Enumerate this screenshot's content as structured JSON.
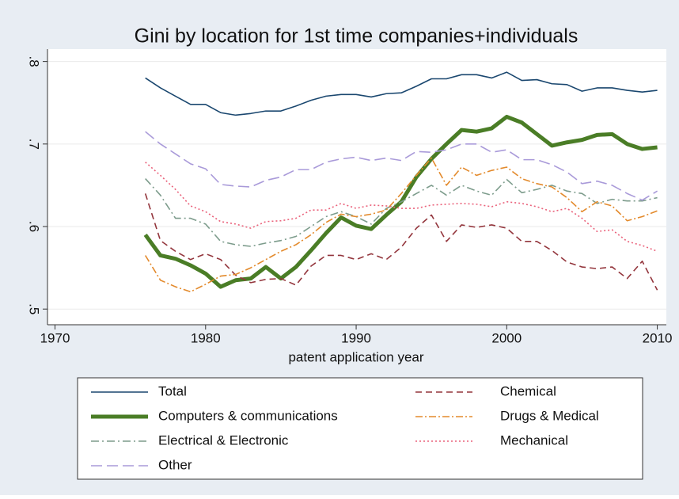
{
  "chart_data": {
    "type": "line",
    "title": "Gini by location for 1st time companies+individuals",
    "xlabel": "patent application year",
    "x": [
      1976,
      1977,
      1978,
      1979,
      1980,
      1981,
      1982,
      1983,
      1984,
      1985,
      1986,
      1987,
      1988,
      1989,
      1990,
      1991,
      1992,
      1993,
      1994,
      1995,
      1996,
      1997,
      1998,
      1999,
      2000,
      2001,
      2002,
      2003,
      2004,
      2005,
      2006,
      2007,
      2008,
      2009,
      2010
    ],
    "xlim": [
      1969.5,
      2010.6
    ],
    "xticks": [
      1970,
      1980,
      1990,
      2000,
      2010
    ],
    "ylim": [
      0.481,
      0.815
    ],
    "yticks": [
      {
        "value": 0.5,
        "label": ".5"
      },
      {
        "value": 0.6,
        "label": ".6"
      },
      {
        "value": 0.7,
        "label": ".7"
      },
      {
        "value": 0.8,
        "label": ".8"
      }
    ],
    "grid": true,
    "series": [
      {
        "name": "Total",
        "color": "#1a476f",
        "values": [
          0.78,
          0.768,
          0.758,
          0.748,
          0.748,
          0.738,
          0.735,
          0.737,
          0.74,
          0.74,
          0.746,
          0.753,
          0.758,
          0.76,
          0.76,
          0.757,
          0.761,
          0.762,
          0.77,
          0.779,
          0.779,
          0.784,
          0.784,
          0.78,
          0.787,
          0.777,
          0.778,
          0.773,
          0.772,
          0.764,
          0.768,
          0.768,
          0.765,
          0.763,
          0.765
        ]
      },
      {
        "name": "Computers & communications",
        "color": "#4a7d26",
        "values": [
          0.59,
          0.565,
          0.561,
          0.553,
          0.543,
          0.527,
          0.535,
          0.537,
          0.551,
          0.537,
          0.551,
          0.571,
          0.592,
          0.611,
          0.601,
          0.597,
          0.614,
          0.63,
          0.66,
          0.682,
          0.7,
          0.717,
          0.715,
          0.719,
          0.733,
          0.726,
          0.712,
          0.698,
          0.702,
          0.705,
          0.711,
          0.712,
          0.7,
          0.694,
          0.696
        ]
      },
      {
        "name": "Electrical & Electronic",
        "color": "#7d9c8c",
        "values": [
          0.658,
          0.638,
          0.61,
          0.61,
          0.603,
          0.582,
          0.578,
          0.576,
          0.58,
          0.583,
          0.588,
          0.6,
          0.612,
          0.618,
          0.612,
          0.603,
          0.622,
          0.63,
          0.64,
          0.65,
          0.638,
          0.65,
          0.643,
          0.638,
          0.657,
          0.641,
          0.645,
          0.65,
          0.643,
          0.64,
          0.628,
          0.633,
          0.631,
          0.631,
          0.635
        ]
      },
      {
        "name": "Other",
        "color": "#a99ad9",
        "values": [
          0.715,
          0.7,
          0.688,
          0.676,
          0.67,
          0.651,
          0.649,
          0.648,
          0.656,
          0.66,
          0.669,
          0.669,
          0.678,
          0.682,
          0.684,
          0.68,
          0.683,
          0.68,
          0.691,
          0.69,
          0.693,
          0.7,
          0.7,
          0.69,
          0.693,
          0.681,
          0.681,
          0.675,
          0.666,
          0.652,
          0.655,
          0.65,
          0.64,
          0.632,
          0.643
        ]
      },
      {
        "name": "Chemical",
        "color": "#93353c",
        "values": [
          0.64,
          0.583,
          0.57,
          0.56,
          0.567,
          0.56,
          0.541,
          0.532,
          0.536,
          0.537,
          0.529,
          0.552,
          0.565,
          0.565,
          0.56,
          0.567,
          0.56,
          0.575,
          0.598,
          0.614,
          0.582,
          0.602,
          0.599,
          0.602,
          0.598,
          0.582,
          0.582,
          0.571,
          0.557,
          0.551,
          0.549,
          0.551,
          0.537,
          0.558,
          0.523
        ]
      },
      {
        "name": "Drugs & Medical",
        "color": "#e38a2c",
        "values": [
          0.565,
          0.535,
          0.527,
          0.521,
          0.53,
          0.54,
          0.542,
          0.55,
          0.56,
          0.57,
          0.578,
          0.59,
          0.605,
          0.615,
          0.612,
          0.615,
          0.62,
          0.64,
          0.662,
          0.683,
          0.65,
          0.672,
          0.662,
          0.668,
          0.672,
          0.658,
          0.652,
          0.648,
          0.635,
          0.618,
          0.63,
          0.625,
          0.607,
          0.612,
          0.619
        ]
      },
      {
        "name": "Mechanical",
        "color": "#ea627b",
        "values": [
          0.678,
          0.662,
          0.645,
          0.625,
          0.618,
          0.606,
          0.603,
          0.598,
          0.606,
          0.607,
          0.61,
          0.62,
          0.62,
          0.628,
          0.622,
          0.626,
          0.625,
          0.622,
          0.622,
          0.626,
          0.627,
          0.628,
          0.627,
          0.624,
          0.63,
          0.628,
          0.624,
          0.618,
          0.622,
          0.61,
          0.594,
          0.596,
          0.582,
          0.577,
          0.57
        ]
      }
    ]
  }
}
